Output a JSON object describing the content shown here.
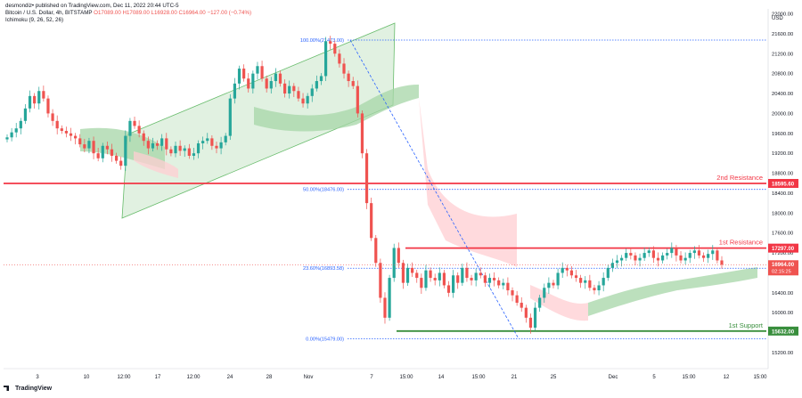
{
  "header": {
    "line1": "desmondiz• published on TradingView.com, Dec 11, 2022 20:44 UTC-5",
    "line2_symbol": "Bitcoin / U.S. Dollar, 4h, BITSTAMP",
    "line2_ohlc": "O17089.00 H17089.00 L16928.00 C16964.00 −127.00 (−0.74%)",
    "line3": "Ichimoku (9, 26, 52, 26)"
  },
  "footer": {
    "brand": "TradingView"
  },
  "colors": {
    "up": "#26a69a",
    "down": "#ef5350",
    "resistance": "#f23645",
    "support": "#388e3c",
    "fib": "#2962ff",
    "channel_fill": "#c8e6c9",
    "cloud_up": "#a5d6a7",
    "cloud_down": "#ffcdd2"
  },
  "chart_data": {
    "type": "candlestick",
    "currency": "USD",
    "ylim": [
      15000,
      22200
    ],
    "y_ticks": [
      15200,
      15600,
      16000,
      16400,
      16800,
      17200,
      17600,
      18000,
      18400,
      18800,
      19200,
      19600,
      20000,
      20400,
      20800,
      21200,
      21600,
      22000
    ],
    "x_ticks": [
      "3",
      "10",
      "12:00",
      "17",
      "12:00",
      "24",
      "28",
      "Nov",
      "7",
      "15:00",
      "14",
      "15:00",
      "21",
      "25",
      "Dec",
      "5",
      "15:00",
      "12",
      "15:00"
    ],
    "levels": [
      {
        "label": "2nd Resistance",
        "price": "18595.60",
        "value": 18595.6
      },
      {
        "label": "1st Resistance",
        "price": "17297.00",
        "value": 17297.0
      },
      {
        "label": "1st Support",
        "price": "15632.00",
        "value": 15632.0
      }
    ],
    "fib_levels": [
      {
        "label": "100.00%(21473.00)",
        "value": 21473.0
      },
      {
        "label": "50.00%(18476.00)",
        "value": 18476.0
      },
      {
        "label": "23.60%(16893.58)",
        "value": 16893.58
      },
      {
        "label": "0.00%(15479.00)",
        "value": 15479.0
      }
    ],
    "last_price": {
      "price": "16964.00",
      "countdown": "02:15:25",
      "value": 16964.0
    },
    "series": [
      {
        "close": [
          19520,
          19620,
          19700,
          19850,
          20100,
          20350,
          20200,
          20450,
          20300,
          20000,
          19850,
          19700,
          19650,
          19600,
          19550,
          19500,
          19380,
          19300,
          19450,
          19200,
          19100,
          19350,
          19280,
          19150,
          19050,
          18950,
          19550,
          19850,
          19750,
          19600,
          19450,
          19300,
          19400,
          19350,
          19500,
          19280,
          19200,
          19350,
          19250,
          19300,
          19150,
          19200,
          19400,
          19450,
          19500,
          19350,
          19300,
          19420,
          19550,
          20300,
          20600,
          20900,
          20700,
          20500,
          20800,
          20950,
          20700,
          20500,
          20650,
          20800,
          20600,
          20400,
          20550,
          20450,
          20300,
          20200,
          20350,
          20500,
          20650,
          20750,
          21450,
          21400,
          21200,
          21000,
          20800,
          20650,
          20550,
          20000,
          19200,
          18200,
          17500,
          17000,
          16300,
          15900,
          16700,
          17300,
          17000,
          16600,
          16900,
          16800,
          16700,
          16500,
          16850,
          16700,
          16650,
          16800,
          16550,
          16400,
          16750,
          16600,
          16900,
          16700,
          16650,
          16800,
          16750,
          16600,
          16700,
          16650,
          16550,
          16600,
          16450,
          16350,
          16200,
          16100,
          15900,
          15700,
          16100,
          16300,
          16500,
          16600,
          16550,
          16800,
          16900,
          16850,
          16750,
          16700,
          16600,
          16650,
          16500,
          16450,
          16550,
          16700,
          16900,
          17000,
          17050,
          17100,
          17200,
          17150,
          17050,
          17100,
          17200,
          17250,
          17100,
          17050,
          17150,
          17200,
          17300,
          17150,
          17050,
          17100,
          17200,
          17250,
          17150,
          17100,
          17180,
          17250,
          17050,
          16964
        ]
      }
    ]
  }
}
